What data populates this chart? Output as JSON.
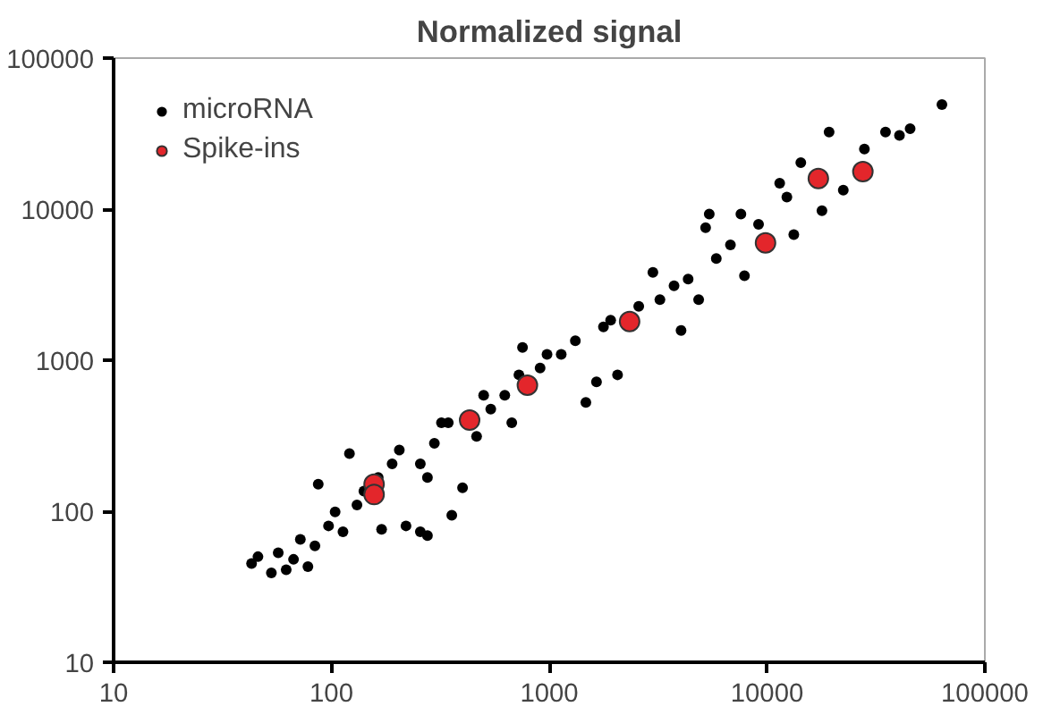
{
  "chart_data": {
    "type": "scatter",
    "title": "Normalized signal",
    "log": "xy",
    "grid": false,
    "legend": "top left",
    "marker": "circle",
    "xlim": [
      10,
      100000
    ],
    "ylim": [
      10,
      100000
    ],
    "xticks": [
      10,
      100,
      1000,
      10000,
      100000
    ],
    "yticks": [
      10,
      100,
      1000,
      10000,
      100000
    ],
    "series": [
      {
        "name": "microRNA",
        "color": "#000000",
        "x": [
          43,
          53,
          57,
          67,
          72,
          84,
          87,
          97,
          104,
          113,
          121,
          131,
          141,
          170,
          190,
          220,
          256,
          276,
          256,
          276,
          297,
          320,
          357,
          400,
          464,
          539,
          625,
          673,
          726,
          754,
          908,
          1135,
          1318,
          1473,
          1648,
          1774,
          2059,
          2576,
          2992,
          3222,
          4029,
          4343,
          4853,
          5224,
          5429,
          5848,
          7877,
          7586,
          9141,
          11430,
          13270,
          14290,
          17870,
          19270,
          22390,
          27990,
          34990,
          40550,
          45390,
          63530,
          164,
          205,
          344,
          500,
          977,
          1914,
          3741,
          6792,
          12330,
          46,
          78,
          62
        ],
        "values": [
          45,
          39,
          53,
          48,
          65,
          59,
          151,
          80,
          99,
          73,
          241,
          110,
          136,
          76,
          206,
          80,
          73,
          69,
          206,
          167,
          282,
          385,
          94,
          143,
          313,
          474,
          585,
          385,
          800,
          1213,
          887,
          1092,
          1345,
          526,
          719,
          1660,
          800,
          2270,
          3819,
          2518,
          1574,
          3443,
          2518,
          7534,
          9268,
          4710,
          3623,
          9268,
          7925,
          14830,
          6776,
          20280,
          9772,
          32430,
          13370,
          25000,
          32430,
          30760,
          34120,
          49200,
          167,
          254,
          385,
          585,
          1092,
          1841,
          3105,
          5794,
          12030,
          50,
          43,
          41
        ]
      },
      {
        "name": "Spike-ins",
        "color": "#e3262b",
        "x": [
          157,
          157,
          431,
          794,
          2339,
          9840,
          17200,
          27540
        ],
        "values": [
          151,
          129,
          401,
          683,
          1803,
          5980,
          15950,
          17700
        ]
      }
    ]
  }
}
